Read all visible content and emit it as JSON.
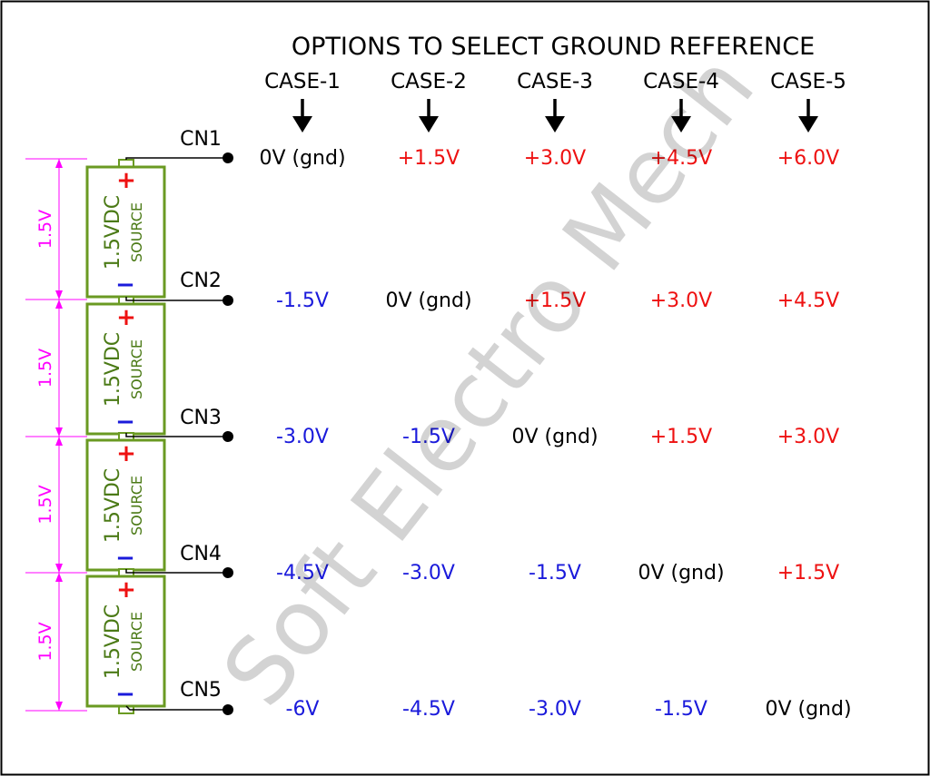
{
  "title": "OPTIONS TO SELECT GROUND REFERENCE",
  "watermark": "Soft Electro Mech",
  "cases": [
    "CASE-1",
    "CASE-2",
    "CASE-3",
    "CASE-4",
    "CASE-5"
  ],
  "connectors": [
    "CN1",
    "CN2",
    "CN3",
    "CN4",
    "CN5"
  ],
  "sources": [
    {
      "line1": "1.5VDC",
      "line2": "SOURCE",
      "plus": "+",
      "minus": "−",
      "dimension": "1.5V"
    },
    {
      "line1": "1.5VDC",
      "line2": "SOURCE",
      "plus": "+",
      "minus": "−",
      "dimension": "1.5V"
    },
    {
      "line1": "1.5VDC",
      "line2": "SOURCE",
      "plus": "+",
      "minus": "−",
      "dimension": "1.5V"
    },
    {
      "line1": "1.5VDC",
      "line2": "SOURCE",
      "plus": "+",
      "minus": "−",
      "dimension": "1.5V"
    }
  ],
  "table": [
    [
      "0V (gnd)",
      "+1.5V",
      "+3.0V",
      "+4.5V",
      "+6.0V"
    ],
    [
      "-1.5V",
      "0V (gnd)",
      "+1.5V",
      "+3.0V",
      "+4.5V"
    ],
    [
      "-3.0V",
      "-1.5V",
      "0V (gnd)",
      "+1.5V",
      "+3.0V"
    ],
    [
      "-4.5V",
      "-3.0V",
      "-1.5V",
      "0V (gnd)",
      "+1.5V"
    ],
    [
      "-6V",
      "-4.5V",
      "-3.0V",
      "-1.5V",
      "0V (gnd)"
    ]
  ],
  "colors": {
    "positive": "#ee1111",
    "negative": "#1a1adb",
    "ground": "#000000",
    "source_outline": "#6a9a22",
    "source_text": "#4b7a16",
    "dimension": "#ff00ff",
    "terminal_plus": "#ee1111",
    "terminal_minus": "#1a1adb"
  }
}
